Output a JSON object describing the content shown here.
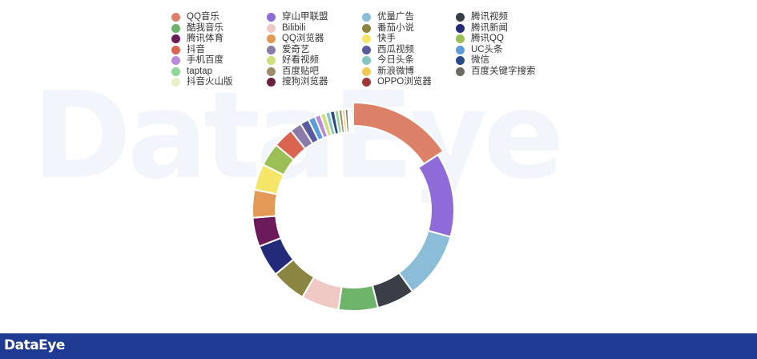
{
  "watermark": "DataEye",
  "footer": {
    "logo_text": "DataEye"
  },
  "chart_data": {
    "type": "pie",
    "donut": true,
    "legend_position": "top",
    "labels": [
      "QQ音乐",
      "穿山甲联盟",
      "优量广告",
      "腾讯视频",
      "酷我音乐",
      "Bilibili",
      "番茄小说",
      "腾讯新闻",
      "腾讯体育",
      "QQ浏览器",
      "快手",
      "腾讯QQ",
      "抖音",
      "爱奇艺",
      "西瓜视频",
      "UC头条",
      "手机百度",
      "好看视频",
      "今日头条",
      "微信",
      "taptap",
      "百度贴吧",
      "新浪微博",
      "百度关键字搜索",
      "抖音火山版",
      "搜狗浏览器",
      "OPPO浏览器"
    ],
    "values": [
      17.0,
      14.5,
      11.5,
      6.5,
      6.8,
      6.5,
      6.0,
      5.5,
      5.0,
      4.8,
      4.5,
      4.0,
      3.5,
      2.0,
      1.5,
      1.2,
      1.0,
      0.9,
      0.8,
      0.8,
      0.7,
      0.6,
      0.5,
      0.5,
      0.3,
      0.3,
      0.3
    ],
    "ring_order": [
      "QQ音乐",
      "穿山甲联盟",
      "优量广告",
      "腾讯视频",
      "酷我音乐",
      "Bilibili",
      "番茄小说",
      "腾讯新闻",
      "腾讯体育",
      "QQ浏览器",
      "快手",
      "腾讯QQ",
      "抖音",
      "爱奇艺",
      "西瓜视频",
      "UC头条",
      "手机百度",
      "好看视频",
      "今日头条",
      "微信",
      "taptap",
      "百度贴吧",
      "新浪微博",
      "百度关键字搜索",
      "抖音火山版",
      "搜狗浏览器",
      "OPPO浏览器"
    ],
    "colors": [
      "#dd8068",
      "#8e6bd9",
      "#8bbcd8",
      "#3a3f47",
      "#6db36a",
      "#f0c9c4",
      "#8a8540",
      "#242a7a",
      "#6b1a5a",
      "#e39a57",
      "#f5e66a",
      "#9bbf55",
      "#d96450",
      "#8a7aa8",
      "#5a5aa0",
      "#5b9bd8",
      "#b98adc",
      "#cfe07a",
      "#84c6c0",
      "#2a4a8a",
      "#8ed69a",
      "#a08a6a",
      "#f2c85a",
      "#6b6b60",
      "#e8f0c8",
      "#6b2040",
      "#a03838"
    ]
  }
}
